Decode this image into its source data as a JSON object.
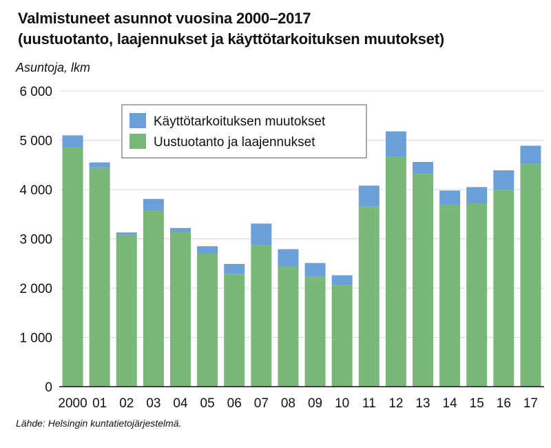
{
  "chart_data": {
    "type": "bar",
    "stacked": true,
    "title_line1": "Valmistuneet asunnot vuosina 2000–2017",
    "title_line2": "(uustuotanto, laajennukset ja käyttötarkoituksen muutokset)",
    "ylabel": "Asuntoja, lkm",
    "source": "Lähde: Helsingin kuntatietojärjestelmä.",
    "ylim": [
      0,
      6000
    ],
    "yticks": [
      0,
      1000,
      2000,
      3000,
      4000,
      5000,
      6000
    ],
    "ytick_labels": [
      "0",
      "1 000",
      "2 000",
      "3 000",
      "4 000",
      "5 000",
      "6 000"
    ],
    "categories": [
      "2000",
      "01",
      "02",
      "03",
      "04",
      "05",
      "06",
      "07",
      "08",
      "09",
      "10",
      "11",
      "12",
      "13",
      "14",
      "15",
      "16",
      "17"
    ],
    "legend_position": "top-left",
    "series": [
      {
        "name": "Uustuotanto ja laajennukset",
        "color": "#7ab87a",
        "values": [
          4860,
          4450,
          3080,
          3580,
          3140,
          2700,
          2290,
          2880,
          2440,
          2240,
          2060,
          3660,
          4660,
          4320,
          3680,
          3720,
          3990,
          4520
        ]
      },
      {
        "name": "Käyttötarkoituksen muutokset",
        "color": "#6a9fd8",
        "values": [
          240,
          100,
          50,
          230,
          80,
          150,
          200,
          430,
          350,
          270,
          200,
          420,
          520,
          240,
          300,
          330,
          400,
          370
        ]
      }
    ],
    "legend_order": [
      1,
      0
    ]
  }
}
